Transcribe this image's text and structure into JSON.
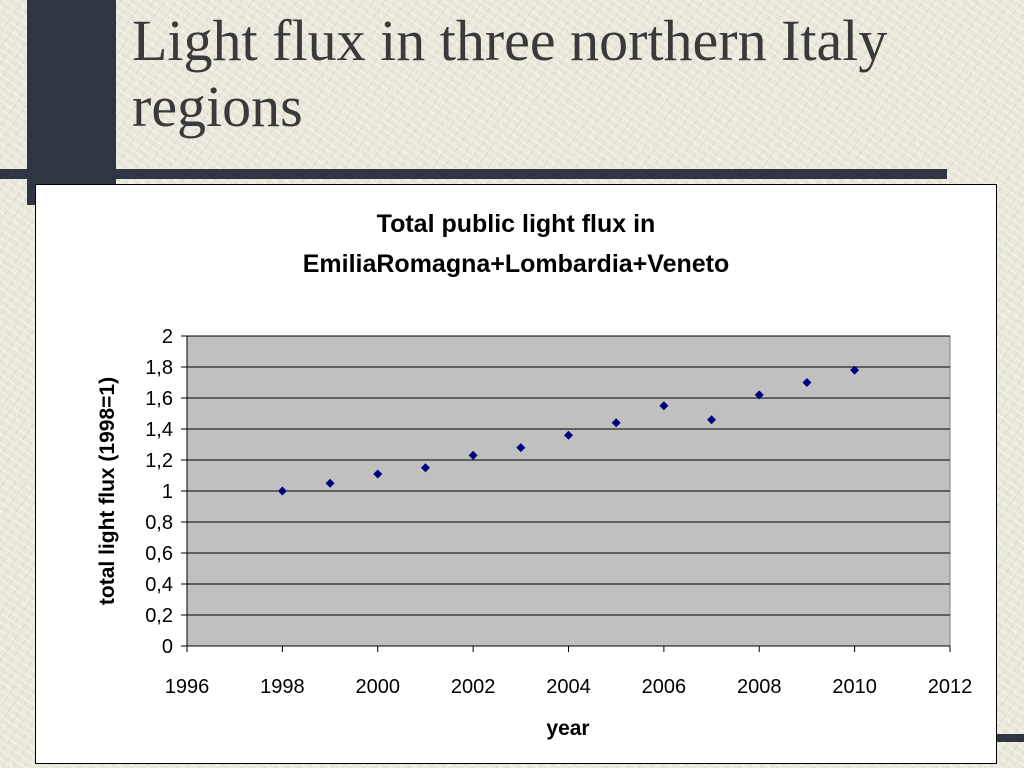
{
  "slide": {
    "title": "Light flux in three northern Italy regions"
  },
  "chart_data": {
    "type": "scatter",
    "title": "Total public light flux in EmiliaRomagna+Lombardia+Veneto",
    "title_lines": [
      "Total public light flux in",
      "EmiliaRomagna+Lombardia+Veneto"
    ],
    "xlabel": "year",
    "ylabel": "total light flux (1998=1)",
    "xlim": [
      1996,
      2012
    ],
    "ylim": [
      0,
      2
    ],
    "x_ticks": [
      "1996",
      "1998",
      "2000",
      "2002",
      "2004",
      "2006",
      "2008",
      "2010",
      "2012"
    ],
    "y_ticks": [
      "0",
      "0,2",
      "0,4",
      "0,6",
      "0,8",
      "1",
      "1,2",
      "1,4",
      "1,6",
      "1,8",
      "2"
    ],
    "grid": true,
    "plot_background": "#c0c0c0",
    "marker_color": "#000080",
    "series": [
      {
        "x": [
          1998,
          1999,
          2000,
          2001,
          2002,
          2003,
          2004,
          2005,
          2006,
          2007,
          2008,
          2009,
          2010
        ],
        "y": [
          1.0,
          1.05,
          1.11,
          1.15,
          1.23,
          1.28,
          1.36,
          1.44,
          1.55,
          1.46,
          1.62,
          1.7,
          1.78
        ]
      }
    ]
  }
}
